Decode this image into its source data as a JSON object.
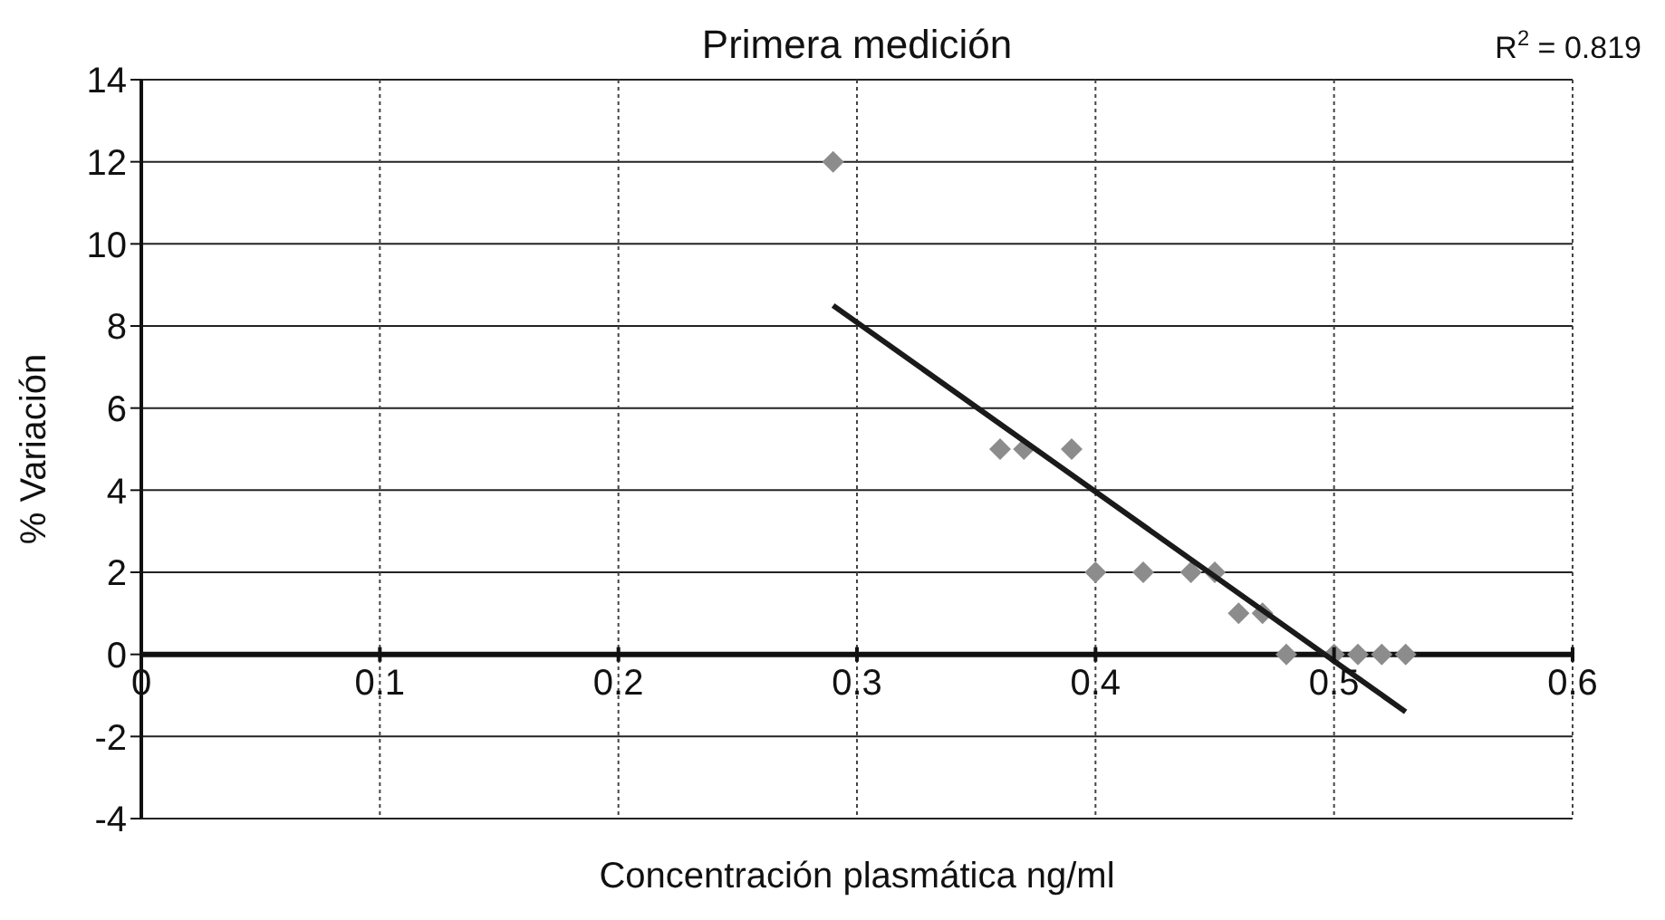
{
  "chart_data": {
    "type": "scatter",
    "title": "Primera medición",
    "xlabel": "Concentración plasmática ng/ml",
    "ylabel": "% Variación",
    "annotations": [
      "R$^{2}$ = 0.819"
    ],
    "series": [
      {
        "color": "#8c8c8c",
        "marker": "diamond",
        "x": [
          0.29,
          0.36,
          0.37,
          0.39,
          0.4,
          0.42,
          0.44,
          0.45,
          0.46,
          0.47,
          0.48,
          0.5,
          0.51,
          0.52,
          0.53
        ],
        "values": [
          12,
          5,
          5,
          5,
          2,
          2,
          2,
          2,
          1,
          1,
          0,
          0,
          0,
          0,
          0
        ]
      },
      {
        "type": "line",
        "color": "#1a1a1a",
        "x": [
          0.29,
          0.53
        ],
        "values": [
          8.5,
          -1.4
        ]
      }
    ],
    "xlim": [
      0,
      0.6
    ],
    "xticks": [
      0,
      0.1,
      0.2,
      0.3,
      0.4,
      0.5,
      0.6
    ],
    "ylim": [
      -4,
      14
    ],
    "yticks": [
      -4,
      -2,
      0,
      2,
      4,
      6,
      8,
      10,
      12,
      14
    ],
    "grid": true
  }
}
